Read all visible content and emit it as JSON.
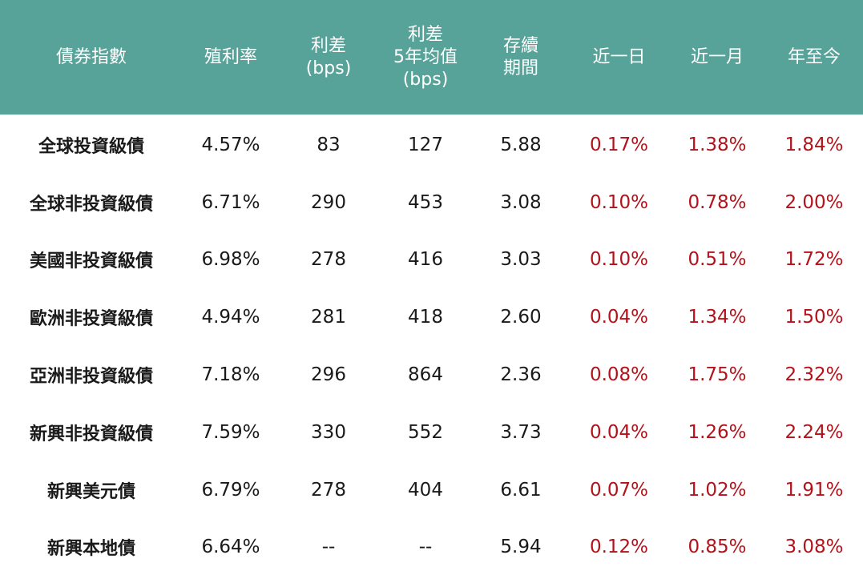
{
  "header": {
    "col0": "債券指數",
    "col1": "殖利率",
    "col2_l1": "利差",
    "col2_l2": "(bps)",
    "col3_l1": "利差",
    "col3_l2": "5年均值",
    "col3_l3": "(bps)",
    "col4_l1": "存續",
    "col4_l2": "期間",
    "col5": "近一日",
    "col6": "近一月",
    "col7": "年至今"
  },
  "rows": [
    {
      "name": "全球投資級債",
      "yield": "4.57%",
      "spread": "83",
      "spread5y": "127",
      "duration": "5.88",
      "d1": "0.17%",
      "m1": "1.38%",
      "ytd": "1.84%"
    },
    {
      "name": "全球非投資級債",
      "yield": "6.71%",
      "spread": "290",
      "spread5y": "453",
      "duration": "3.08",
      "d1": "0.10%",
      "m1": "0.78%",
      "ytd": "2.00%"
    },
    {
      "name": "美國非投資級債",
      "yield": "6.98%",
      "spread": "278",
      "spread5y": "416",
      "duration": "3.03",
      "d1": "0.10%",
      "m1": "0.51%",
      "ytd": "1.72%"
    },
    {
      "name": "歐洲非投資級債",
      "yield": "4.94%",
      "spread": "281",
      "spread5y": "418",
      "duration": "2.60",
      "d1": "0.04%",
      "m1": "1.34%",
      "ytd": "1.50%"
    },
    {
      "name": "亞洲非投資級債",
      "yield": "7.18%",
      "spread": "296",
      "spread5y": "864",
      "duration": "2.36",
      "d1": "0.08%",
      "m1": "1.75%",
      "ytd": "2.32%"
    },
    {
      "name": "新興非投資級債",
      "yield": "7.59%",
      "spread": "330",
      "spread5y": "552",
      "duration": "3.73",
      "d1": "0.04%",
      "m1": "1.26%",
      "ytd": "2.24%"
    },
    {
      "name": "新興美元債",
      "yield": "6.79%",
      "spread": "278",
      "spread5y": "404",
      "duration": "6.61",
      "d1": "0.07%",
      "m1": "1.02%",
      "ytd": "1.91%"
    },
    {
      "name": "新興本地債",
      "yield": "6.64%",
      "spread": "--",
      "spread5y": "--",
      "duration": "5.94",
      "d1": "0.12%",
      "m1": "0.85%",
      "ytd": "3.08%"
    }
  ],
  "colors": {
    "header_bg": "#58a399",
    "header_text": "#ffffff",
    "positive_return": "#b3121a"
  }
}
